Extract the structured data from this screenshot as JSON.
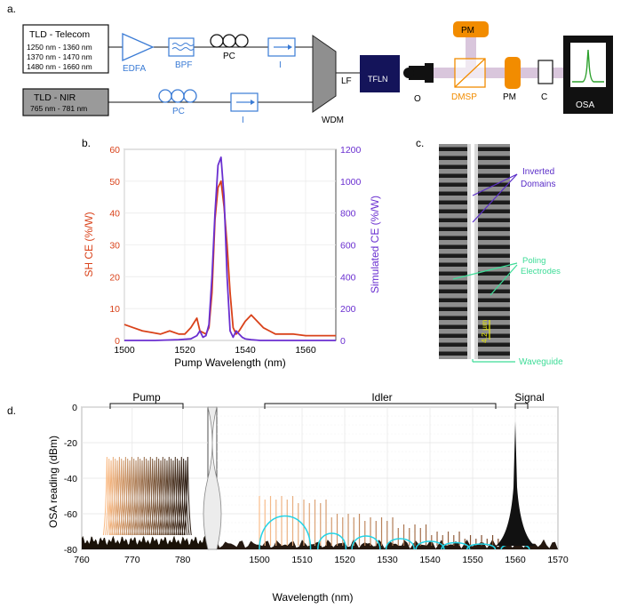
{
  "panel_a": {
    "label": "a.",
    "tld_telecom": {
      "title": "TLD - Telecom",
      "ranges": [
        "1250 nm - 1360 nm",
        "1370 nm - 1470 nm",
        "1480 nm - 1660 nm"
      ]
    },
    "tld_nir": {
      "title": "TLD - NIR",
      "range": "765 nm - 781 nm"
    },
    "edfa": "EDFA",
    "bpf": "BPF",
    "pc_top": "PC",
    "pc_bottom": "PC",
    "iso_top": "I",
    "iso_bottom": "I",
    "wdm": "WDM",
    "lf": "LF",
    "tfln": "TFLN",
    "objective": "O",
    "dmsp": "DMSP",
    "pm_top": "PM",
    "pm_right": "PM",
    "collimator": "C",
    "osa": "OSA",
    "colors": {
      "optics_blue": "#3a7bd5",
      "tfln_fill": "#14145a",
      "orange": "#f28c00",
      "beam": "#d9c6dc",
      "osa_trace": "#2ca02c"
    }
  },
  "panel_b": {
    "label": "b.",
    "xlabel": "Pump Wavelength (nm)",
    "ylabel_left": "SH CE  (%/W)",
    "ylabel_right": "Simulated CE (%/W)",
    "x_ticks": [
      "1500",
      "1520",
      "1540",
      "1560"
    ],
    "y_left_ticks": [
      "0",
      "10",
      "20",
      "30",
      "40",
      "50",
      "60"
    ],
    "y_right_ticks": [
      "0",
      "200",
      "400",
      "600",
      "800",
      "1000",
      "1200"
    ]
  },
  "panel_c": {
    "label": "c.",
    "inverted_domains": [
      "Inverted",
      "Domains"
    ],
    "poling_electrodes": [
      "Poling",
      "Electrodes"
    ],
    "scale": "4.2 µm",
    "waveguide": "Waveguide",
    "colors": {
      "domains": "#5a2dc8",
      "electrodes": "#3ddc97",
      "scale": "#e8e800"
    }
  },
  "panel_d": {
    "label": "d.",
    "group_pump": "Pump",
    "group_idler": "Idler",
    "group_signal": "Signal",
    "xlabel": "Wavelength (nm)",
    "ylabel": "OSA reading (dBm)",
    "x_ticks_left": [
      "760",
      "770",
      "780"
    ],
    "x_ticks_right": [
      "1500",
      "1510",
      "1520",
      "1530",
      "1540",
      "1550",
      "1560",
      "1570"
    ],
    "y_ticks": [
      "0",
      "-20",
      "-40",
      "-60",
      "-80"
    ],
    "colors": {
      "sim": "#22d3e6",
      "signal": "#111111"
    }
  },
  "chart_data": [
    {
      "type": "line",
      "xlabel": "Pump Wavelength (nm)",
      "ylabel": "SH CE  (%/W)",
      "xlim": [
        1500,
        1570
      ],
      "ylim": [
        0,
        60
      ],
      "y2label": "Simulated CE (%/W)",
      "y2lim": [
        0,
        1200
      ],
      "grid": true,
      "series": [
        {
          "axis": "left",
          "color": "#d9421a",
          "x": [
            1500,
            1503,
            1506,
            1509,
            1512,
            1515,
            1518,
            1520,
            1522,
            1524,
            1525,
            1527,
            1528,
            1529,
            1530,
            1531,
            1532,
            1533,
            1534,
            1535,
            1536,
            1537,
            1538,
            1540,
            1542,
            1544,
            1546,
            1548,
            1550,
            1553,
            1556,
            1560,
            1565,
            1570
          ],
          "y": [
            5,
            4,
            3,
            2.5,
            2,
            3,
            2,
            2,
            4,
            7,
            3,
            2,
            4,
            15,
            38,
            48,
            50,
            42,
            30,
            15,
            4,
            2,
            3,
            6,
            8,
            6,
            4,
            3,
            2,
            2,
            2,
            1.5,
            1.5,
            1.5
          ]
        },
        {
          "axis": "right",
          "color": "#6a2fd0",
          "x": [
            1500,
            1510,
            1518,
            1522,
            1524,
            1525,
            1526,
            1527,
            1528,
            1529,
            1530,
            1531,
            1532,
            1533,
            1534,
            1535,
            1536,
            1537,
            1538,
            1539,
            1540,
            1542,
            1545,
            1550,
            1560,
            1570
          ],
          "y": [
            0,
            0,
            5,
            10,
            30,
            60,
            20,
            30,
            100,
            400,
            800,
            1100,
            1150,
            900,
            400,
            60,
            20,
            60,
            40,
            20,
            10,
            5,
            0,
            0,
            0,
            0
          ]
        }
      ]
    },
    {
      "type": "line",
      "xlabel": "Wavelength (nm)",
      "ylabel": "OSA reading (dBm)",
      "ylim": [
        -80,
        0
      ],
      "x_segments": [
        [
          760,
          785
        ],
        [
          1490,
          1570
        ]
      ],
      "grid": true,
      "series": [
        {
          "kind": "pump",
          "x_range": [
            765,
            781
          ],
          "peak_dbm": -28,
          "floor_dbm": -75
        },
        {
          "kind": "idler",
          "x_range": [
            1500,
            1556
          ],
          "peak_dbm": [
            -50,
            -52,
            -60,
            -62,
            -66,
            -70,
            -72
          ],
          "floor_dbm": -78
        },
        {
          "kind": "signal",
          "x": 1560,
          "peak_dbm": -8,
          "floor_dbm": -78
        },
        {
          "kind": "simulated",
          "color": "#22d3e6",
          "lobe_centers": [
            1506,
            1517,
            1525,
            1533,
            1540,
            1546,
            1552,
            1560
          ],
          "lobe_peaks": [
            -55,
            -68,
            -70,
            -72,
            -74,
            -75,
            -76,
            -76
          ]
        }
      ]
    }
  ]
}
